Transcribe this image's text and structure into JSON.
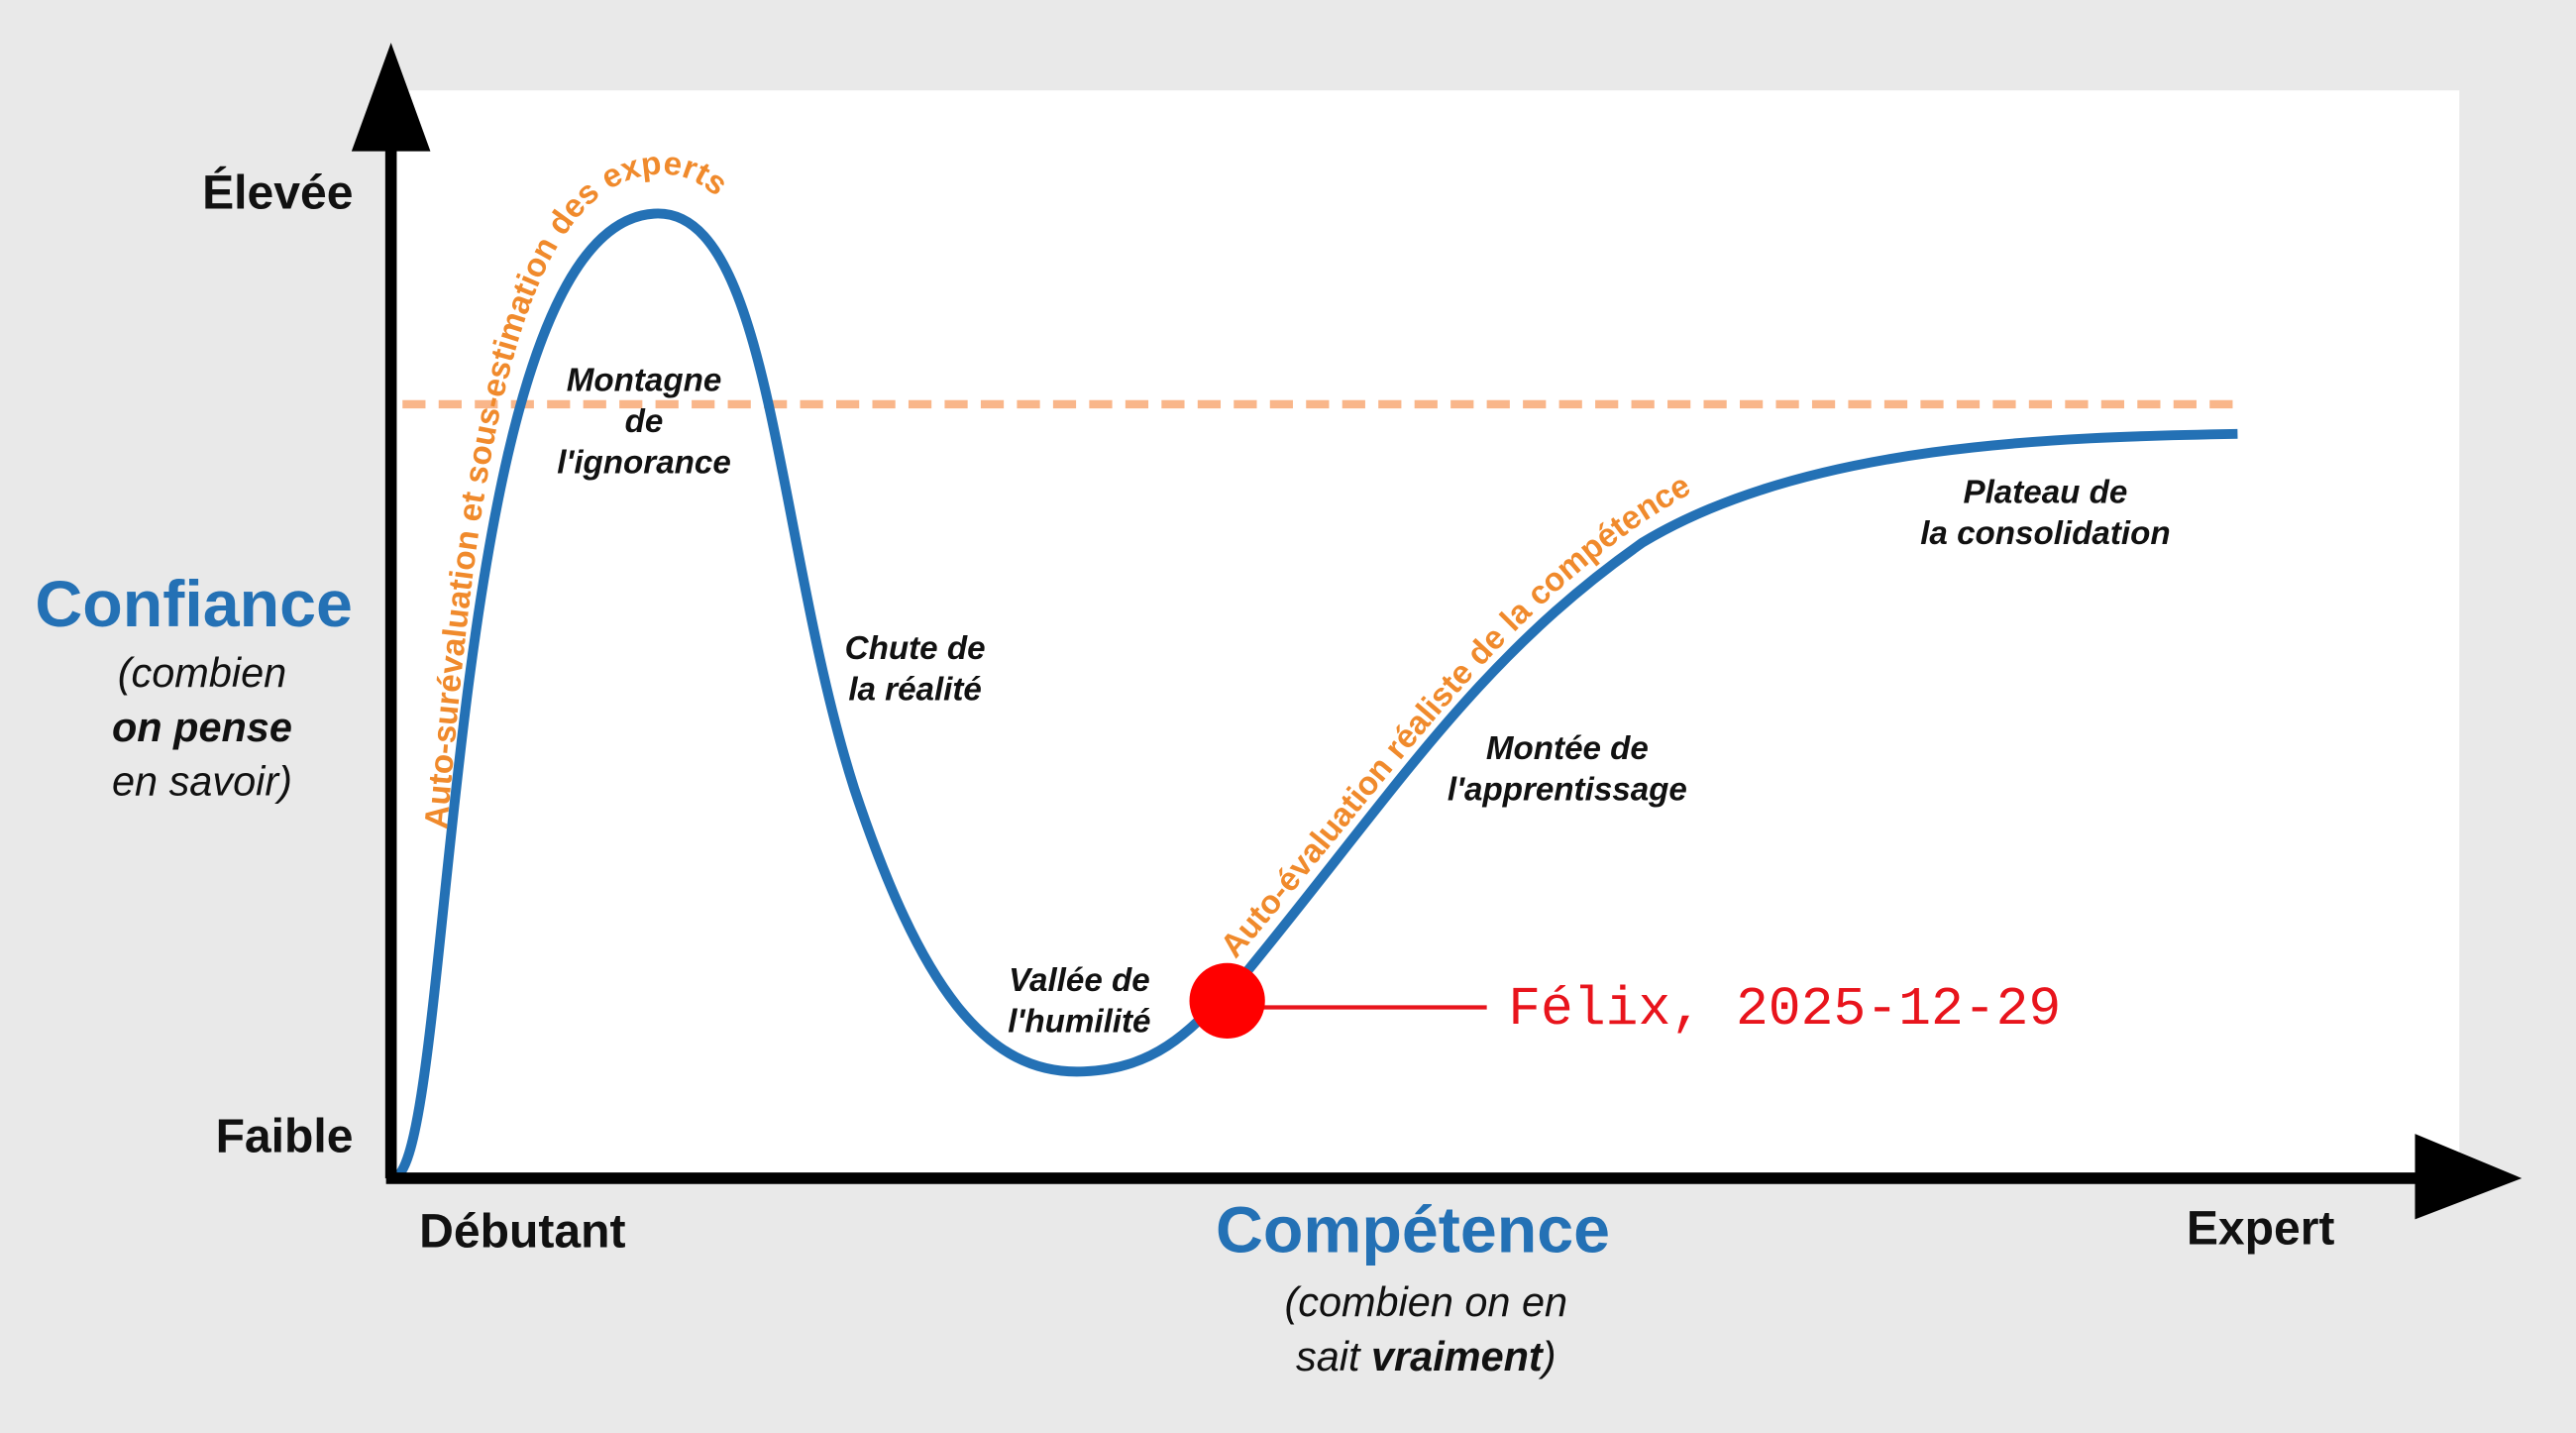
{
  "y_axis": {
    "title": "Confiance",
    "subtitle": [
      [
        "(combien"
      ],
      [
        "on pense"
      ],
      [
        "en savoir)"
      ]
    ],
    "high": "Élevée",
    "low": "Faible"
  },
  "x_axis": {
    "title": "Compétence",
    "subtitle": [
      [
        "(combien on en"
      ],
      [
        "sait ",
        "vraiment",
        ")"
      ]
    ],
    "start": "Débutant",
    "end": "Expert"
  },
  "stages": [
    {
      "lines": [
        "Montagne",
        "de",
        "l'ignorance"
      ]
    },
    {
      "lines": [
        "Chute de",
        "la réalité"
      ]
    },
    {
      "lines": [
        "Vallée de",
        "l'humilité"
      ]
    },
    {
      "lines": [
        "Montée de",
        "l'apprentissage"
      ]
    },
    {
      "lines": [
        "Plateau de",
        "la consolidation"
      ]
    }
  ],
  "curve_labels": [
    "Auto-surévaluation et sous-estimation des experts",
    "Auto-évaluation réaliste de la compétence"
  ],
  "marker": {
    "label": "Félix, 2025-12-29"
  }
}
